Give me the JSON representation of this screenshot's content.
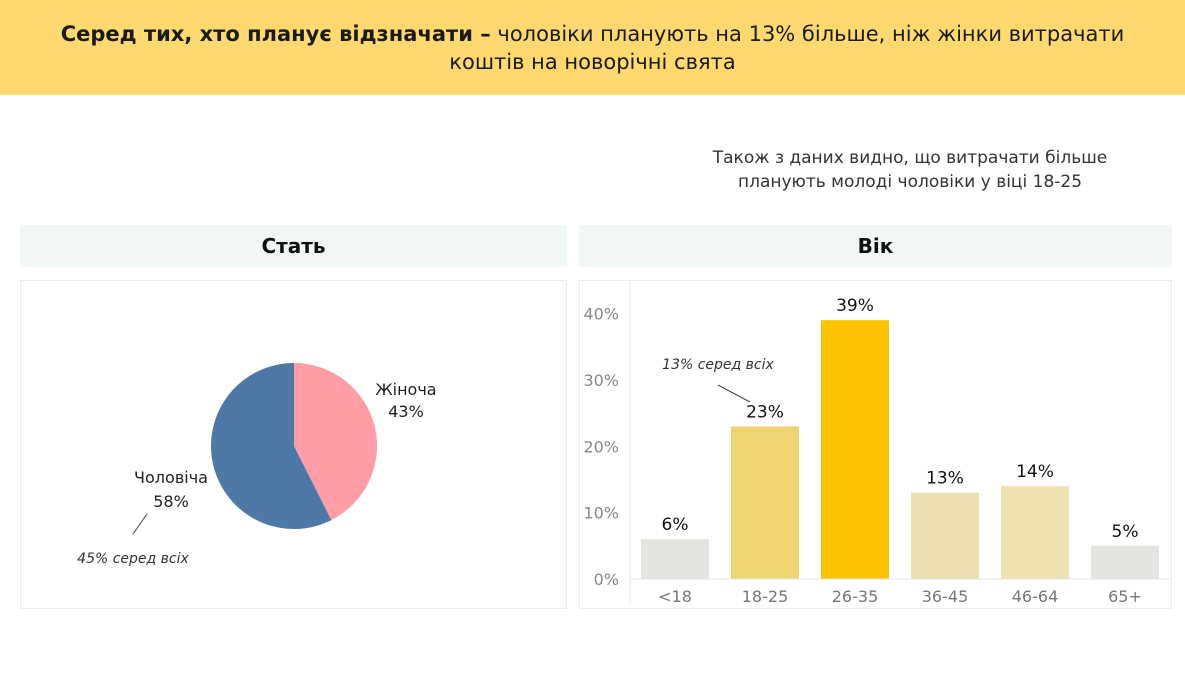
{
  "header": {
    "title_bold": "Серед тих, хто планує відзначати –",
    "title_rest": "чоловіки планують на 13% більше, ніж жінки витрачати коштів на новорічні свята"
  },
  "note": {
    "line1": "Також з даних видно, що витрачати більше",
    "line2": "планують молоді чоловіки у віці 18-25"
  },
  "panels": {
    "left_title": "Стать",
    "right_title": "Вік"
  },
  "chart_data": [
    {
      "type": "pie",
      "title": "Стать",
      "slices": [
        {
          "label": "Жіноча",
          "value": 43,
          "value_label": "43%",
          "color": "#ff9da6"
        },
        {
          "label": "Чоловіча",
          "value": 58,
          "value_label": "58%",
          "color": "#4e79a7"
        }
      ],
      "annotation": "45% серед всіх"
    },
    {
      "type": "bar",
      "title": "Вік",
      "categories": [
        "<18",
        "18-25",
        "26-35",
        "36-45",
        "46-64",
        "65+"
      ],
      "values": [
        6,
        23,
        39,
        13,
        14,
        5
      ],
      "value_labels": [
        "6%",
        "23%",
        "39%",
        "13%",
        "14%",
        "5%"
      ],
      "colors": [
        "#e4e4e1",
        "#f1d472",
        "#fbc300",
        "#ebdeb0",
        "#f0e1b1",
        "#e4e4e1"
      ],
      "yticks": [
        0,
        10,
        20,
        30,
        40
      ],
      "ytick_labels": [
        "0%",
        "10%",
        "20%",
        "30%",
        "40%"
      ],
      "ylim": [
        0,
        44
      ],
      "annotation": "13% серед всіх",
      "grid": false
    }
  ]
}
